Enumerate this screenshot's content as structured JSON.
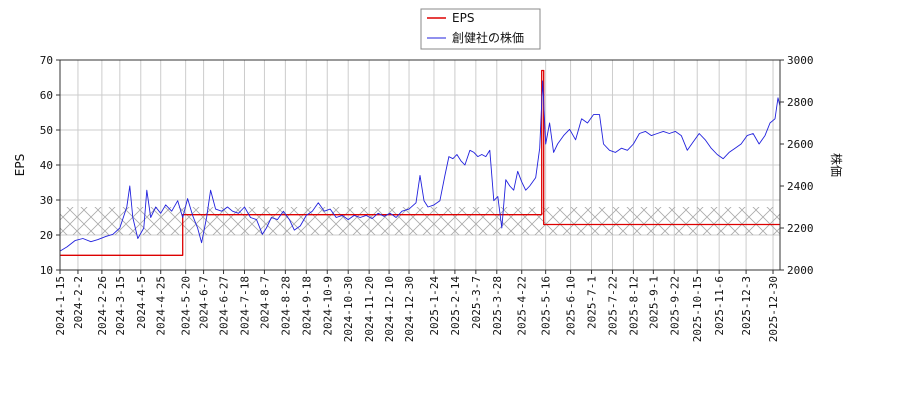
{
  "chart_data": {
    "type": "line",
    "legend": {
      "placement": "top-center",
      "entries": [
        {
          "name": "EPS",
          "color": "#dd0000"
        },
        {
          "name": "創健社の株価",
          "color": "#2222dd"
        }
      ]
    },
    "y_left": {
      "label": "EPS",
      "range": [
        10,
        70
      ],
      "ticks": [
        10,
        20,
        30,
        40,
        50,
        60,
        70
      ]
    },
    "y_right": {
      "label": "株価",
      "range": [
        2000,
        3000
      ],
      "ticks": [
        2000,
        2200,
        2400,
        2600,
        2800,
        3000
      ]
    },
    "x_range": [
      "2024-01-15",
      "2026-01-06"
    ],
    "x_ticks": [
      "2024-1-15",
      "2024-2-2",
      "2024-2-26",
      "2024-3-15",
      "2024-4-5",
      "2024-4-25",
      "2024-5-20",
      "2024-6-7",
      "2024-6-27",
      "2024-7-18",
      "2024-8-7",
      "2024-8-28",
      "2024-9-18",
      "2024-10-9",
      "2024-10-30",
      "2024-11-20",
      "2024-12-10",
      "2024-12-30",
      "2025-1-24",
      "2025-2-14",
      "2025-3-7",
      "2025-3-28",
      "2025-4-22",
      "2025-5-16",
      "2025-6-10",
      "2025-7-1",
      "2025-7-22",
      "2025-8-12",
      "2025-9-1",
      "2025-9-22",
      "2025-10-15",
      "2025-11-6",
      "2025-12-3",
      "2025-12-30"
    ],
    "grid": true,
    "hatched_band": [
      20,
      28
    ],
    "series": [
      {
        "name": "EPS",
        "axis": "left",
        "color": "#dd0000",
        "step": true,
        "points": [
          [
            "2024-01-15",
            14.2
          ],
          [
            "2024-05-17",
            14.2
          ],
          [
            "2024-05-17",
            25.8
          ],
          [
            "2025-05-12",
            25.8
          ],
          [
            "2025-05-12",
            67.0
          ],
          [
            "2025-05-14",
            67.0
          ],
          [
            "2025-05-14",
            23.0
          ],
          [
            "2026-01-06",
            23.0
          ]
        ]
      },
      {
        "name": "創健社の株価",
        "axis": "right",
        "color": "#2222dd",
        "step": false,
        "points": [
          [
            "2024-01-15",
            2090
          ],
          [
            "2024-01-22",
            2110
          ],
          [
            "2024-01-30",
            2140
          ],
          [
            "2024-02-07",
            2150
          ],
          [
            "2024-02-15",
            2135
          ],
          [
            "2024-02-22",
            2145
          ],
          [
            "2024-03-01",
            2160
          ],
          [
            "2024-03-08",
            2170
          ],
          [
            "2024-03-15",
            2200
          ],
          [
            "2024-03-22",
            2300
          ],
          [
            "2024-03-25",
            2400
          ],
          [
            "2024-03-28",
            2250
          ],
          [
            "2024-04-02",
            2150
          ],
          [
            "2024-04-08",
            2200
          ],
          [
            "2024-04-11",
            2380
          ],
          [
            "2024-04-15",
            2250
          ],
          [
            "2024-04-20",
            2300
          ],
          [
            "2024-04-25",
            2270
          ],
          [
            "2024-04-30",
            2310
          ],
          [
            "2024-05-06",
            2280
          ],
          [
            "2024-05-12",
            2330
          ],
          [
            "2024-05-17",
            2250
          ],
          [
            "2024-05-22",
            2340
          ],
          [
            "2024-05-27",
            2260
          ],
          [
            "2024-06-01",
            2200
          ],
          [
            "2024-06-05",
            2130
          ],
          [
            "2024-06-10",
            2250
          ],
          [
            "2024-06-14",
            2380
          ],
          [
            "2024-06-19",
            2290
          ],
          [
            "2024-06-25",
            2280
          ],
          [
            "2024-07-01",
            2300
          ],
          [
            "2024-07-06",
            2280
          ],
          [
            "2024-07-12",
            2270
          ],
          [
            "2024-07-18",
            2300
          ],
          [
            "2024-07-24",
            2250
          ],
          [
            "2024-07-30",
            2240
          ],
          [
            "2024-08-05",
            2170
          ],
          [
            "2024-08-09",
            2200
          ],
          [
            "2024-08-14",
            2250
          ],
          [
            "2024-08-20",
            2240
          ],
          [
            "2024-08-26",
            2280
          ],
          [
            "2024-09-01",
            2240
          ],
          [
            "2024-09-06",
            2190
          ],
          [
            "2024-09-12",
            2210
          ],
          [
            "2024-09-18",
            2260
          ],
          [
            "2024-09-24",
            2280
          ],
          [
            "2024-09-30",
            2320
          ],
          [
            "2024-10-06",
            2280
          ],
          [
            "2024-10-12",
            2290
          ],
          [
            "2024-10-18",
            2250
          ],
          [
            "2024-10-24",
            2260
          ],
          [
            "2024-10-30",
            2240
          ],
          [
            "2024-11-05",
            2260
          ],
          [
            "2024-11-11",
            2250
          ],
          [
            "2024-11-17",
            2260
          ],
          [
            "2024-11-23",
            2245
          ],
          [
            "2024-11-29",
            2270
          ],
          [
            "2024-12-05",
            2255
          ],
          [
            "2024-12-11",
            2270
          ],
          [
            "2024-12-17",
            2250
          ],
          [
            "2024-12-23",
            2280
          ],
          [
            "2024-12-30",
            2290
          ],
          [
            "2025-01-06",
            2320
          ],
          [
            "2025-01-10",
            2450
          ],
          [
            "2025-01-14",
            2330
          ],
          [
            "2025-01-18",
            2300
          ],
          [
            "2025-01-24",
            2310
          ],
          [
            "2025-01-30",
            2330
          ],
          [
            "2025-02-04",
            2450
          ],
          [
            "2025-02-08",
            2540
          ],
          [
            "2025-02-12",
            2530
          ],
          [
            "2025-02-16",
            2550
          ],
          [
            "2025-02-20",
            2520
          ],
          [
            "2025-02-24",
            2500
          ],
          [
            "2025-03-01",
            2570
          ],
          [
            "2025-03-05",
            2560
          ],
          [
            "2025-03-09",
            2540
          ],
          [
            "2025-03-13",
            2550
          ],
          [
            "2025-03-17",
            2540
          ],
          [
            "2025-03-21",
            2570
          ],
          [
            "2025-03-25",
            2330
          ],
          [
            "2025-03-29",
            2350
          ],
          [
            "2025-04-02",
            2200
          ],
          [
            "2025-04-06",
            2430
          ],
          [
            "2025-04-10",
            2400
          ],
          [
            "2025-04-14",
            2380
          ],
          [
            "2025-04-18",
            2470
          ],
          [
            "2025-04-22",
            2420
          ],
          [
            "2025-04-26",
            2380
          ],
          [
            "2025-04-30",
            2400
          ],
          [
            "2025-05-06",
            2440
          ],
          [
            "2025-05-10",
            2580
          ],
          [
            "2025-05-13",
            2900
          ],
          [
            "2025-05-16",
            2600
          ],
          [
            "2025-05-20",
            2700
          ],
          [
            "2025-05-24",
            2560
          ],
          [
            "2025-05-28",
            2600
          ],
          [
            "2025-06-03",
            2640
          ],
          [
            "2025-06-09",
            2670
          ],
          [
            "2025-06-15",
            2620
          ],
          [
            "2025-06-21",
            2720
          ],
          [
            "2025-06-27",
            2700
          ],
          [
            "2025-07-03",
            2740
          ],
          [
            "2025-07-09",
            2740
          ],
          [
            "2025-07-13",
            2600
          ],
          [
            "2025-07-19",
            2570
          ],
          [
            "2025-07-25",
            2560
          ],
          [
            "2025-07-31",
            2580
          ],
          [
            "2025-08-06",
            2570
          ],
          [
            "2025-08-12",
            2600
          ],
          [
            "2025-08-18",
            2650
          ],
          [
            "2025-08-24",
            2660
          ],
          [
            "2025-08-30",
            2640
          ],
          [
            "2025-09-05",
            2650
          ],
          [
            "2025-09-11",
            2660
          ],
          [
            "2025-09-17",
            2650
          ],
          [
            "2025-09-23",
            2660
          ],
          [
            "2025-09-29",
            2640
          ],
          [
            "2025-10-05",
            2570
          ],
          [
            "2025-10-11",
            2610
          ],
          [
            "2025-10-17",
            2650
          ],
          [
            "2025-10-23",
            2620
          ],
          [
            "2025-10-29",
            2580
          ],
          [
            "2025-11-04",
            2550
          ],
          [
            "2025-11-10",
            2530
          ],
          [
            "2025-11-16",
            2560
          ],
          [
            "2025-11-22",
            2580
          ],
          [
            "2025-11-28",
            2600
          ],
          [
            "2025-12-04",
            2640
          ],
          [
            "2025-12-10",
            2650
          ],
          [
            "2025-12-16",
            2600
          ],
          [
            "2025-12-22",
            2640
          ],
          [
            "2025-12-27",
            2700
          ],
          [
            "2026-01-01",
            2720
          ],
          [
            "2026-01-04",
            2820
          ],
          [
            "2026-01-06",
            2780
          ]
        ]
      }
    ]
  }
}
